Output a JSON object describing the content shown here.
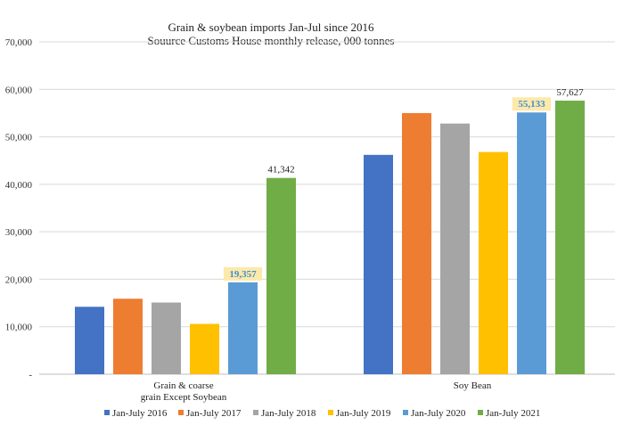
{
  "chart_data": {
    "type": "bar",
    "title": "Grain & soybean imports Jan-Jul since 2016",
    "subtitle": "Souurce Customs House monthly release, 000 tonnes",
    "categories": [
      [
        "Grain & coarse",
        "grain Except Soybean"
      ],
      [
        "Soy Bean"
      ]
    ],
    "series": [
      {
        "name": "Jan-July 2016",
        "color": "#4472c4",
        "values": [
          14200,
          46200
        ]
      },
      {
        "name": "Jan-July 2017",
        "color": "#ed7d31",
        "values": [
          15900,
          55000
        ]
      },
      {
        "name": "Jan-July 2018",
        "color": "#a5a5a5",
        "values": [
          15100,
          52800
        ]
      },
      {
        "name": "Jan-July 2019",
        "color": "#ffc000",
        "values": [
          10600,
          46800
        ]
      },
      {
        "name": "Jan-July 2020",
        "color": "#5b9bd5",
        "values": [
          19357,
          55133
        ]
      },
      {
        "name": "Jan-July 2021",
        "color": "#70ad47",
        "values": [
          41342,
          57627
        ]
      }
    ],
    "data_labels": [
      {
        "series": 4,
        "category": 0,
        "text": "19,357",
        "highlight": true
      },
      {
        "series": 5,
        "category": 0,
        "text": "41,342",
        "highlight": false
      },
      {
        "series": 4,
        "category": 1,
        "text": "55,133",
        "highlight": true
      },
      {
        "series": 5,
        "category": 1,
        "text": "57,627",
        "highlight": false
      }
    ],
    "highlight_bg": "#fde9a9",
    "highlight_text": "#3f8fd6",
    "ylim": [
      0,
      70000
    ],
    "yticks": [
      {
        "value": 0,
        "label": "-"
      },
      {
        "value": 10000,
        "label": "10,000"
      },
      {
        "value": 20000,
        "label": "20,000"
      },
      {
        "value": 30000,
        "label": "30,000"
      },
      {
        "value": 40000,
        "label": "40,000"
      },
      {
        "value": 50000,
        "label": "50,000"
      },
      {
        "value": 60000,
        "label": "60,000"
      },
      {
        "value": 70000,
        "label": "70,000"
      }
    ],
    "grid": true,
    "legend_position": "bottom",
    "xlabel": "",
    "ylabel": ""
  }
}
